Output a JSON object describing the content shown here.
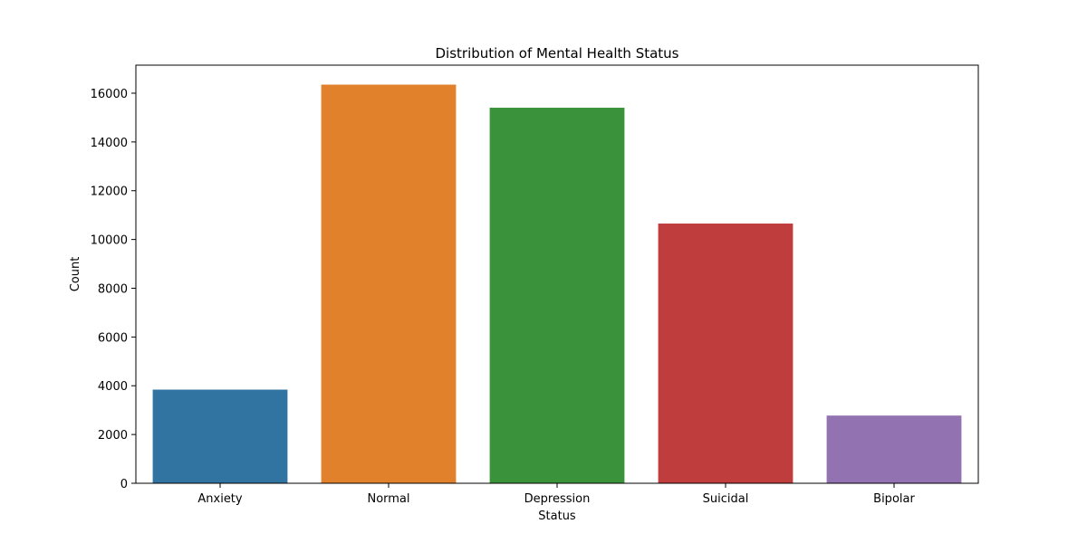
{
  "chart_data": {
    "type": "bar",
    "title": "Distribution of Mental Health Status",
    "xlabel": "Status",
    "ylabel": "Count",
    "categories": [
      "Anxiety",
      "Normal",
      "Depression",
      "Suicidal",
      "Bipolar"
    ],
    "values": [
      3841,
      16351,
      15404,
      10653,
      2777
    ],
    "colors": [
      "#3274a1",
      "#e1812c",
      "#3a923a",
      "#c03d3e",
      "#9372b2"
    ],
    "ylim": [
      0,
      17150
    ],
    "yticks": [
      0,
      2000,
      4000,
      6000,
      8000,
      10000,
      12000,
      14000,
      16000
    ],
    "grid": false,
    "legend": "none"
  }
}
